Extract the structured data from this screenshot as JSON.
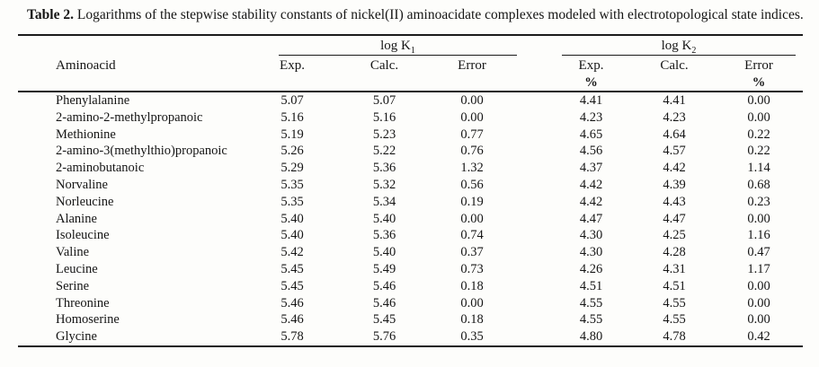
{
  "title": {
    "label": "Table 2.",
    "text": " Logarithms of the stepwise stability constants of nickel(II) aminoacidate complexes modeled with electrotopological state indices."
  },
  "colors": {
    "background": "#fdfdfb",
    "text": "#151515",
    "rule": "#1b1b1b"
  },
  "header": {
    "aminoacid": "Aminoacid",
    "group1": {
      "label": "log K",
      "sub": "1"
    },
    "group2": {
      "label": "log K",
      "sub": "2"
    },
    "columns": {
      "exp": "Exp.",
      "calc": "Calc.",
      "error": "Error",
      "percent": "%"
    }
  },
  "table": {
    "type": "table",
    "column_keys": [
      "name",
      "k1_exp",
      "k1_calc",
      "k1_error",
      "k2_exp",
      "k2_calc",
      "k2_error_pct"
    ],
    "rows": [
      {
        "name": "Phenylalanine",
        "values": [
          "5.07",
          "5.07",
          "0.00",
          "4.41",
          "4.41",
          "0.00"
        ]
      },
      {
        "name": "2-amino-2-methylpropanoic",
        "values": [
          "5.16",
          "5.16",
          "0.00",
          "4.23",
          "4.23",
          "0.00"
        ]
      },
      {
        "name": "Methionine",
        "values": [
          "5.19",
          "5.23",
          "0.77",
          "4.65",
          "4.64",
          "0.22"
        ]
      },
      {
        "name": "2-amino-3(methylthio)propanoic",
        "values": [
          "5.26",
          "5.22",
          "0.76",
          "4.56",
          "4.57",
          "0.22"
        ]
      },
      {
        "name": "2-aminobutanoic",
        "values": [
          "5.29",
          "5.36",
          "1.32",
          "4.37",
          "4.42",
          "1.14"
        ]
      },
      {
        "name": "Norvaline",
        "values": [
          "5.35",
          "5.32",
          "0.56",
          "4.42",
          "4.39",
          "0.68"
        ]
      },
      {
        "name": "Norleucine",
        "values": [
          "5.35",
          "5.34",
          "0.19",
          "4.42",
          "4.43",
          "0.23"
        ]
      },
      {
        "name": "Alanine",
        "values": [
          "5.40",
          "5.40",
          "0.00",
          "4.47",
          "4.47",
          "0.00"
        ]
      },
      {
        "name": "Isoleucine",
        "values": [
          "5.40",
          "5.36",
          "0.74",
          "4.30",
          "4.25",
          "1.16"
        ]
      },
      {
        "name": "Valine",
        "values": [
          "5.42",
          "5.40",
          "0.37",
          "4.30",
          "4.28",
          "0.47"
        ]
      },
      {
        "name": "Leucine",
        "values": [
          "5.45",
          "5.49",
          "0.73",
          "4.26",
          "4.31",
          "1.17"
        ]
      },
      {
        "name": "Serine",
        "values": [
          "5.45",
          "5.46",
          "0.18",
          "4.51",
          "4.51",
          "0.00"
        ]
      },
      {
        "name": "Threonine",
        "values": [
          "5.46",
          "5.46",
          "0.00",
          "4.55",
          "4.55",
          "0.00"
        ]
      },
      {
        "name": "Homoserine",
        "values": [
          "5.46",
          "5.45",
          "0.18",
          "4.55",
          "4.55",
          "0.00"
        ]
      },
      {
        "name": "Glycine",
        "values": [
          "5.78",
          "5.76",
          "0.35",
          "4.80",
          "4.78",
          "0.42"
        ]
      }
    ]
  }
}
